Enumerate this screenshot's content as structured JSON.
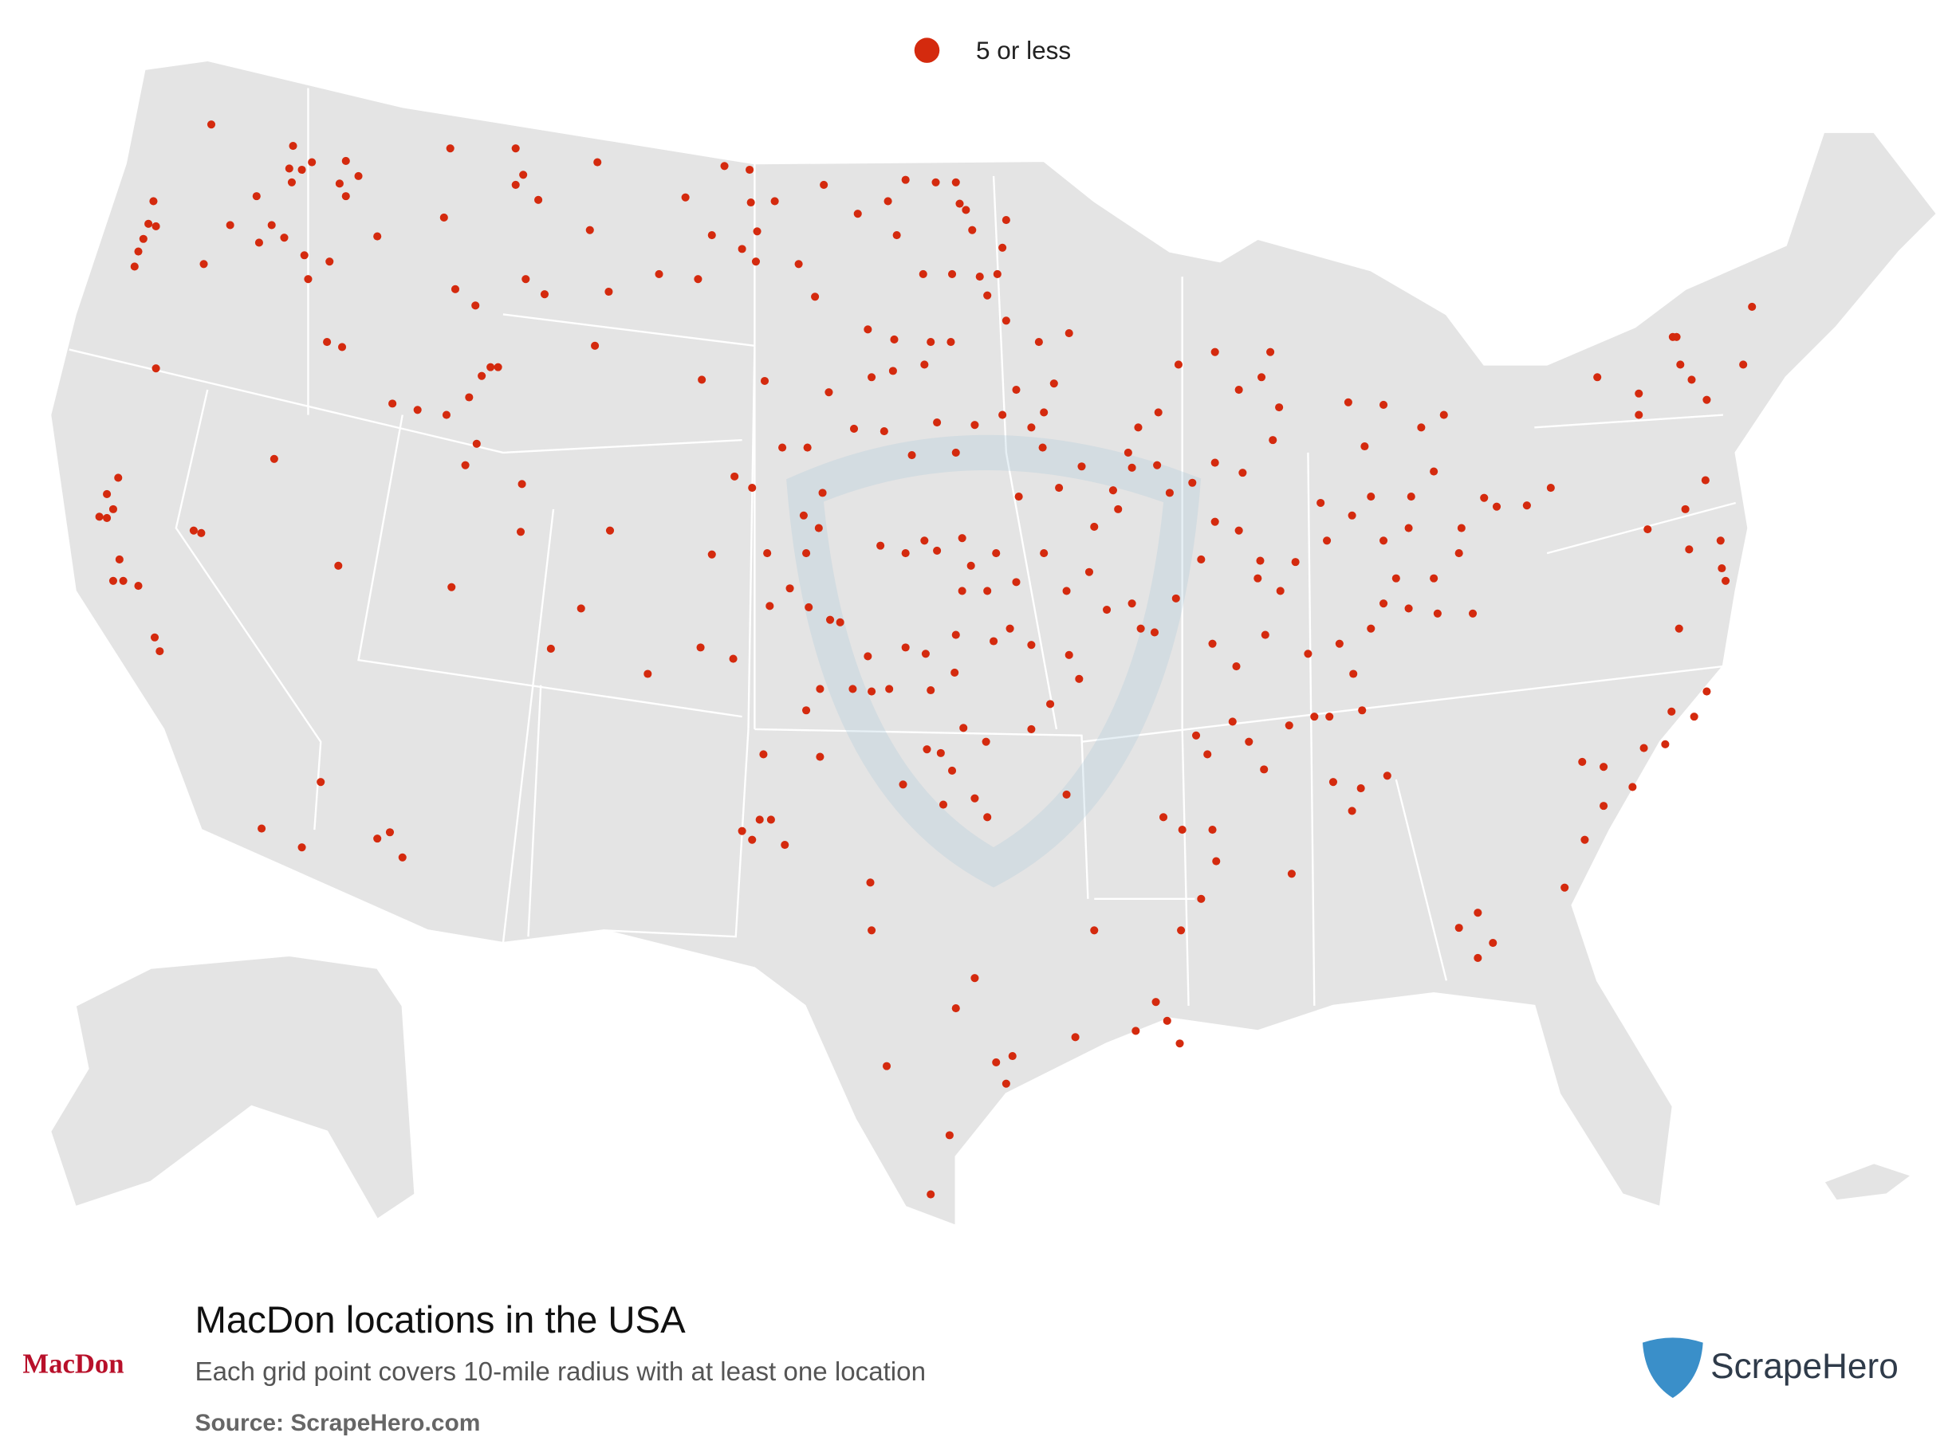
{
  "legend": {
    "label": "5 or less"
  },
  "title": "MacDon locations in the USA",
  "subtitle": "Each grid point covers 10-mile radius with at least one location",
  "source": "Source: ScrapeHero.com",
  "brand_logo": "MacDon",
  "watermark_logo": "ScrapeHero"
}
